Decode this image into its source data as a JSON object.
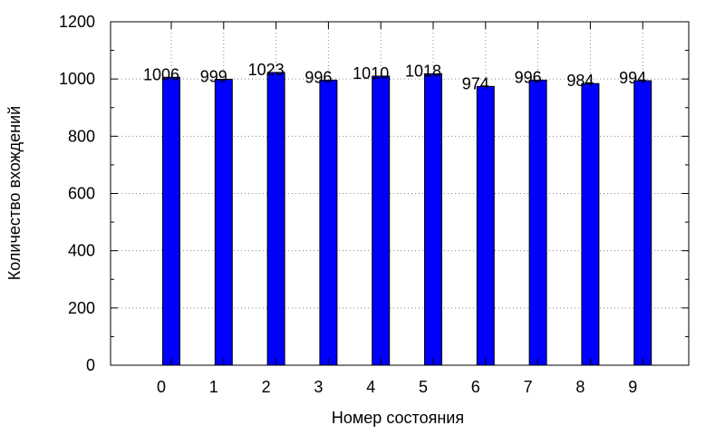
{
  "chart_data": {
    "type": "bar",
    "categories": [
      "0",
      "1",
      "2",
      "3",
      "4",
      "5",
      "6",
      "7",
      "8",
      "9"
    ],
    "values": [
      1006,
      999,
      1023,
      996,
      1010,
      1018,
      974,
      996,
      984,
      994
    ],
    "data_labels": [
      "1006",
      "999",
      "1023",
      "996",
      "1010",
      "1018",
      "974",
      "996",
      "984",
      "994"
    ],
    "xlabel": "Номер состояния",
    "ylabel": "Количество вхождений",
    "ylim": [
      0,
      1200
    ],
    "yticks": [
      0,
      200,
      400,
      600,
      800,
      1000,
      1200
    ],
    "ytick_labels": [
      "0",
      "200",
      "400",
      "600",
      "800",
      "1000",
      "1200"
    ],
    "minor_ytick_step": 100,
    "grid": true,
    "grid_style": "dotted",
    "bar_color": "#0000ff",
    "bar_edge_color": "#000000"
  }
}
